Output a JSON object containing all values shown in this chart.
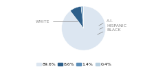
{
  "labels": [
    "WHITE",
    "BLACK",
    "HISPANIC",
    "A.I."
  ],
  "values": [
    89.6,
    8.6,
    1.4,
    0.4
  ],
  "colors": [
    "#dce6f1",
    "#2e5f8a",
    "#5b8db8",
    "#b8cfe0"
  ],
  "legend_labels": [
    "89.6%",
    "8.6%",
    "1.4%",
    "0.4%"
  ],
  "startangle": 90,
  "bg_color": "#ffffff",
  "text_color": "#888888",
  "label_fontsize": 4.5,
  "legend_fontsize": 4.5
}
